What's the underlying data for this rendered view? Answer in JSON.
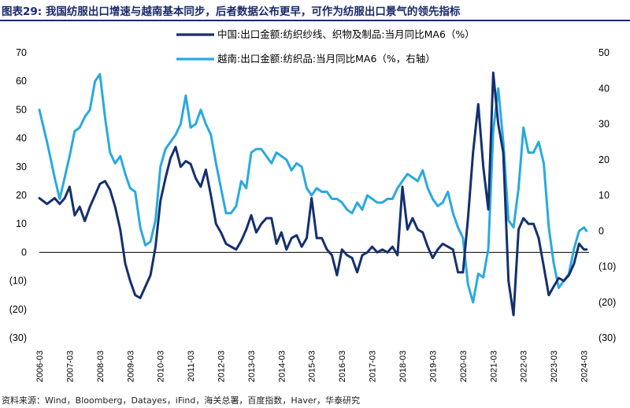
{
  "header": {
    "title": "图表29:  我国纺服出口增速与越南基本同步，后者数据公布更早，可作为纺服出口景气的领先指标"
  },
  "footer": {
    "source": "资料来源：Wind，Bloomberg，Datayes，iFind，海关总署，百度指数，Haver，华泰研究"
  },
  "colors": {
    "china": "#14306e",
    "vietnam": "#29a9e1",
    "title": "#1a2a6b"
  },
  "chart_data": {
    "type": "line",
    "x_tick_labels": [
      "2006-03",
      "2007-03",
      "2008-03",
      "2009-03",
      "2010-03",
      "2011-03",
      "2012-03",
      "2013-03",
      "2014-03",
      "2015-03",
      "2016-03",
      "2017-03",
      "2018-03",
      "2019-03",
      "2020-03",
      "2021-03",
      "2022-03",
      "2023-03",
      "2024-03"
    ],
    "y_left": {
      "range": [
        -30,
        70
      ],
      "ticks": [
        70,
        60,
        50,
        40,
        30,
        20,
        10,
        0,
        -10,
        -20,
        -30
      ],
      "tick_labels": [
        "70",
        "60",
        "50",
        "40",
        "30",
        "20",
        "10",
        "0",
        "(10)",
        "(20)",
        "(30)"
      ]
    },
    "y_right": {
      "range": [
        -30,
        50
      ],
      "ticks": [
        50,
        40,
        30,
        20,
        10,
        0,
        -10,
        -20,
        -30
      ],
      "tick_labels": [
        "50",
        "40",
        "30",
        "20",
        "10",
        "0",
        "(10)",
        "(20)",
        "(30)"
      ]
    },
    "grid": false,
    "zero_line": true,
    "legend_position": "top-center",
    "series": [
      {
        "name": "中国:出口金额:纺织纱线、织物及制品:当月同比MA6（%）",
        "axis": "left",
        "points": [
          [
            "2006-03",
            19
          ],
          [
            "2006-06",
            17
          ],
          [
            "2006-09",
            19
          ],
          [
            "2006-11",
            17
          ],
          [
            "2007-01",
            19
          ],
          [
            "2007-03",
            23
          ],
          [
            "2007-05",
            13
          ],
          [
            "2007-07",
            16
          ],
          [
            "2007-09",
            11
          ],
          [
            "2007-11",
            16
          ],
          [
            "2008-01",
            20
          ],
          [
            "2008-03",
            24
          ],
          [
            "2008-05",
            25
          ],
          [
            "2008-07",
            22
          ],
          [
            "2008-09",
            16
          ],
          [
            "2008-11",
            8
          ],
          [
            "2009-01",
            -4
          ],
          [
            "2009-03",
            -10
          ],
          [
            "2009-05",
            -15
          ],
          [
            "2009-07",
            -16
          ],
          [
            "2009-09",
            -12
          ],
          [
            "2009-11",
            -8
          ],
          [
            "2010-01",
            2
          ],
          [
            "2010-03",
            18
          ],
          [
            "2010-05",
            26
          ],
          [
            "2010-07",
            33
          ],
          [
            "2010-09",
            37
          ],
          [
            "2010-11",
            30
          ],
          [
            "2011-01",
            32
          ],
          [
            "2011-03",
            31
          ],
          [
            "2011-05",
            26
          ],
          [
            "2011-07",
            23
          ],
          [
            "2011-09",
            29
          ],
          [
            "2011-11",
            20
          ],
          [
            "2012-01",
            10
          ],
          [
            "2012-03",
            7
          ],
          [
            "2012-05",
            3
          ],
          [
            "2012-07",
            2
          ],
          [
            "2012-09",
            1
          ],
          [
            "2012-11",
            4
          ],
          [
            "2013-01",
            8
          ],
          [
            "2013-03",
            13
          ],
          [
            "2013-05",
            7
          ],
          [
            "2013-07",
            10
          ],
          [
            "2013-09",
            12
          ],
          [
            "2013-11",
            12
          ],
          [
            "2014-01",
            3
          ],
          [
            "2014-03",
            7
          ],
          [
            "2014-05",
            1
          ],
          [
            "2014-07",
            5
          ],
          [
            "2014-09",
            6
          ],
          [
            "2014-11",
            2
          ],
          [
            "2015-01",
            5
          ],
          [
            "2015-03",
            19
          ],
          [
            "2015-05",
            5
          ],
          [
            "2015-07",
            5
          ],
          [
            "2015-09",
            1
          ],
          [
            "2015-11",
            -1
          ],
          [
            "2016-01",
            -8
          ],
          [
            "2016-03",
            1
          ],
          [
            "2016-05",
            -1
          ],
          [
            "2016-07",
            -2
          ],
          [
            "2016-09",
            -7
          ],
          [
            "2016-11",
            -1
          ],
          [
            "2017-01",
            0
          ],
          [
            "2017-03",
            2
          ],
          [
            "2017-05",
            0
          ],
          [
            "2017-07",
            1
          ],
          [
            "2017-09",
            0
          ],
          [
            "2017-11",
            2
          ],
          [
            "2018-01",
            -1
          ],
          [
            "2018-03",
            23
          ],
          [
            "2018-05",
            8
          ],
          [
            "2018-07",
            12
          ],
          [
            "2018-09",
            8
          ],
          [
            "2018-11",
            7
          ],
          [
            "2019-01",
            2
          ],
          [
            "2019-03",
            -2
          ],
          [
            "2019-05",
            1
          ],
          [
            "2019-07",
            3
          ],
          [
            "2019-09",
            2
          ],
          [
            "2019-11",
            1
          ],
          [
            "2020-01",
            -7
          ],
          [
            "2020-03",
            -7
          ],
          [
            "2020-05",
            12
          ],
          [
            "2020-07",
            35
          ],
          [
            "2020-09",
            52
          ],
          [
            "2020-11",
            30
          ],
          [
            "2021-01",
            15
          ],
          [
            "2021-03",
            63
          ],
          [
            "2021-05",
            45
          ],
          [
            "2021-07",
            35
          ],
          [
            "2021-09",
            -10
          ],
          [
            "2021-11",
            -22
          ],
          [
            "2022-01",
            8
          ],
          [
            "2022-03",
            12
          ],
          [
            "2022-05",
            10
          ],
          [
            "2022-07",
            10
          ],
          [
            "2022-09",
            5
          ],
          [
            "2022-11",
            -5
          ],
          [
            "2023-01",
            -15
          ],
          [
            "2023-03",
            -12
          ],
          [
            "2023-05",
            -9
          ],
          [
            "2023-07",
            -10
          ],
          [
            "2023-09",
            -8
          ],
          [
            "2023-11",
            -4
          ],
          [
            "2024-01",
            3
          ],
          [
            "2024-03",
            1
          ],
          [
            "2024-04",
            1
          ]
        ]
      },
      {
        "name": "越南:出口金额:纺织品:当月同比MA6（%，右轴）",
        "axis": "right",
        "points": [
          [
            "2006-03",
            34
          ],
          [
            "2006-06",
            25
          ],
          [
            "2006-09",
            15
          ],
          [
            "2006-11",
            9
          ],
          [
            "2007-01",
            15
          ],
          [
            "2007-03",
            21
          ],
          [
            "2007-05",
            28
          ],
          [
            "2007-07",
            29
          ],
          [
            "2007-09",
            32
          ],
          [
            "2007-11",
            34
          ],
          [
            "2008-01",
            42
          ],
          [
            "2008-03",
            44
          ],
          [
            "2008-05",
            32
          ],
          [
            "2008-07",
            22
          ],
          [
            "2008-09",
            19
          ],
          [
            "2008-11",
            21
          ],
          [
            "2009-01",
            16
          ],
          [
            "2009-03",
            12
          ],
          [
            "2009-05",
            11
          ],
          [
            "2009-07",
            1
          ],
          [
            "2009-09",
            -4
          ],
          [
            "2009-11",
            -3
          ],
          [
            "2010-01",
            3
          ],
          [
            "2010-03",
            18
          ],
          [
            "2010-05",
            23
          ],
          [
            "2010-07",
            25
          ],
          [
            "2010-09",
            27
          ],
          [
            "2010-11",
            30
          ],
          [
            "2011-01",
            38
          ],
          [
            "2011-03",
            29
          ],
          [
            "2011-05",
            30
          ],
          [
            "2011-07",
            34
          ],
          [
            "2011-09",
            30
          ],
          [
            "2011-11",
            27
          ],
          [
            "2012-01",
            19
          ],
          [
            "2012-03",
            12
          ],
          [
            "2012-05",
            5
          ],
          [
            "2012-07",
            5
          ],
          [
            "2012-09",
            7
          ],
          [
            "2012-11",
            14
          ],
          [
            "2013-01",
            12
          ],
          [
            "2013-03",
            22
          ],
          [
            "2013-05",
            23
          ],
          [
            "2013-07",
            23
          ],
          [
            "2013-09",
            21
          ],
          [
            "2013-11",
            19
          ],
          [
            "2014-01",
            22
          ],
          [
            "2014-03",
            21
          ],
          [
            "2014-05",
            20
          ],
          [
            "2014-07",
            17
          ],
          [
            "2014-09",
            19
          ],
          [
            "2014-11",
            18
          ],
          [
            "2015-01",
            12
          ],
          [
            "2015-03",
            10
          ],
          [
            "2015-05",
            12
          ],
          [
            "2015-07",
            11
          ],
          [
            "2015-09",
            11
          ],
          [
            "2015-11",
            9
          ],
          [
            "2016-01",
            9
          ],
          [
            "2016-03",
            8
          ],
          [
            "2016-05",
            6
          ],
          [
            "2016-07",
            5
          ],
          [
            "2016-09",
            8
          ],
          [
            "2016-11",
            6
          ],
          [
            "2017-01",
            10
          ],
          [
            "2017-03",
            9
          ],
          [
            "2017-05",
            8
          ],
          [
            "2017-07",
            8
          ],
          [
            "2017-09",
            9
          ],
          [
            "2017-11",
            9
          ],
          [
            "2018-01",
            12
          ],
          [
            "2018-03",
            14
          ],
          [
            "2018-05",
            16
          ],
          [
            "2018-07",
            15
          ],
          [
            "2018-09",
            14
          ],
          [
            "2018-11",
            17
          ],
          [
            "2019-01",
            12
          ],
          [
            "2019-03",
            9
          ],
          [
            "2019-05",
            7
          ],
          [
            "2019-07",
            8
          ],
          [
            "2019-09",
            11
          ],
          [
            "2019-11",
            5
          ],
          [
            "2020-01",
            1
          ],
          [
            "2020-03",
            -2
          ],
          [
            "2020-05",
            -15
          ],
          [
            "2020-07",
            -20
          ],
          [
            "2020-09",
            -12
          ],
          [
            "2020-11",
            -13
          ],
          [
            "2021-01",
            -5
          ],
          [
            "2021-03",
            28
          ],
          [
            "2021-05",
            40
          ],
          [
            "2021-07",
            25
          ],
          [
            "2021-09",
            3
          ],
          [
            "2021-11",
            1
          ],
          [
            "2022-01",
            12
          ],
          [
            "2022-03",
            29
          ],
          [
            "2022-05",
            22
          ],
          [
            "2022-07",
            22
          ],
          [
            "2022-09",
            25
          ],
          [
            "2022-11",
            19
          ],
          [
            "2023-01",
            1
          ],
          [
            "2023-03",
            -9
          ],
          [
            "2023-05",
            -16
          ],
          [
            "2023-07",
            -14
          ],
          [
            "2023-09",
            -12
          ],
          [
            "2023-11",
            -5
          ],
          [
            "2024-01",
            0
          ],
          [
            "2024-03",
            1
          ],
          [
            "2024-04",
            0
          ]
        ]
      }
    ]
  }
}
